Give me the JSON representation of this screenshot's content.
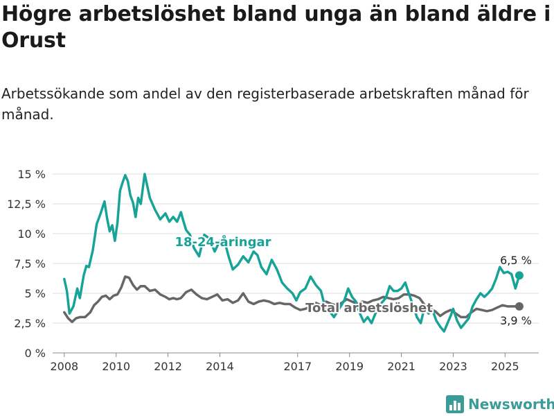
{
  "title": "Högre arbetslöshet bland unga än bland äldre i Orust",
  "subtitle": "Arbetssökande som andel av den registerbaserade arbetskraften månad för månad.",
  "brand": {
    "name": "Newsworthy",
    "icon": "bar-chart-icon",
    "color": "#3a9b97"
  },
  "chart_data": {
    "type": "line",
    "x_ticks": [
      "2008",
      "2010",
      "2012",
      "2014",
      "2017",
      "2019",
      "2021",
      "2023",
      "2025"
    ],
    "y_ticks": [
      "0 %",
      "2,5 %",
      "5 %",
      "7,5 %",
      "10 %",
      "12,5 %",
      "15 %"
    ],
    "ylim": [
      0,
      15
    ],
    "xlim": [
      2007.55,
      2026.3
    ],
    "grid": true,
    "series": [
      {
        "name": "18-24-åringar",
        "label": "18-24-åringar",
        "color": "#17a398",
        "end_label": "6,5 %",
        "x": [
          2008.0,
          2008.1,
          2008.2,
          2008.35,
          2008.5,
          2008.6,
          2008.75,
          2008.85,
          2008.95,
          2009.1,
          2009.25,
          2009.4,
          2009.55,
          2009.65,
          2009.75,
          2009.85,
          2009.95,
          2010.05,
          2010.15,
          2010.25,
          2010.35,
          2010.45,
          2010.55,
          2010.65,
          2010.75,
          2010.85,
          2010.95,
          2011.1,
          2011.3,
          2011.5,
          2011.7,
          2011.9,
          2012.05,
          2012.2,
          2012.35,
          2012.5,
          2012.6,
          2012.7,
          2012.85,
          2013.0,
          2013.2,
          2013.4,
          2013.6,
          2013.8,
          2014.0,
          2014.2,
          2014.35,
          2014.5,
          2014.7,
          2014.9,
          2015.1,
          2015.3,
          2015.45,
          2015.6,
          2015.8,
          2016.0,
          2016.2,
          2016.4,
          2016.6,
          2016.8,
          2016.95,
          2017.1,
          2017.3,
          2017.5,
          2017.7,
          2017.9,
          2018.05,
          2018.2,
          2018.4,
          2018.6,
          2018.8,
          2018.95,
          2019.1,
          2019.25,
          2019.4,
          2019.55,
          2019.7,
          2019.85,
          2020.0,
          2020.2,
          2020.4,
          2020.55,
          2020.7,
          2020.85,
          2021.0,
          2021.15,
          2021.3,
          2021.45,
          2021.6,
          2021.75,
          2021.9,
          2022.05,
          2022.2,
          2022.35,
          2022.5,
          2022.65,
          2022.8,
          2022.9,
          2023.0,
          2023.15,
          2023.3,
          2023.45,
          2023.6,
          2023.75,
          2023.9,
          2024.05,
          2024.2,
          2024.35,
          2024.5,
          2024.65,
          2024.8,
          2024.95,
          2025.1,
          2025.25,
          2025.4,
          2025.55
        ],
        "y": [
          6.2,
          5.2,
          3.3,
          3.9,
          5.4,
          4.6,
          6.5,
          7.3,
          7.2,
          8.6,
          10.8,
          11.7,
          12.7,
          11.3,
          10.2,
          10.7,
          9.4,
          10.9,
          13.6,
          14.3,
          14.9,
          14.4,
          13.2,
          12.6,
          11.4,
          13.0,
          12.5,
          15.0,
          13.0,
          12.0,
          11.2,
          11.7,
          11.0,
          11.4,
          11.0,
          11.8,
          11.0,
          10.3,
          9.9,
          8.8,
          8.1,
          9.9,
          9.6,
          8.5,
          9.4,
          9.2,
          8.0,
          7.0,
          7.4,
          8.1,
          7.6,
          8.5,
          8.2,
          7.2,
          6.6,
          7.8,
          7.0,
          5.9,
          5.4,
          5.0,
          4.4,
          5.1,
          5.4,
          6.4,
          5.7,
          5.2,
          3.9,
          3.6,
          3.0,
          3.7,
          4.4,
          5.4,
          4.7,
          4.3,
          3.3,
          2.6,
          3.0,
          2.5,
          3.3,
          4.1,
          4.6,
          5.6,
          5.2,
          5.2,
          5.4,
          5.9,
          4.9,
          4.0,
          3.0,
          2.5,
          3.9,
          3.3,
          3.6,
          2.7,
          2.2,
          1.8,
          2.6,
          3.1,
          3.7,
          2.7,
          2.1,
          2.5,
          2.9,
          3.9,
          4.5,
          5.0,
          4.7,
          5.0,
          5.4,
          6.2,
          7.2,
          6.7,
          6.8,
          6.6,
          5.4,
          6.5
        ]
      },
      {
        "name": "Total arbetslöshet",
        "label": "Total arbetslöshet",
        "color": "#666666",
        "end_label": "3,9 %",
        "x": [
          2008.0,
          2008.15,
          2008.3,
          2008.45,
          2008.6,
          2008.8,
          2009.0,
          2009.15,
          2009.3,
          2009.45,
          2009.6,
          2009.75,
          2009.9,
          2010.05,
          2010.2,
          2010.35,
          2010.5,
          2010.65,
          2010.8,
          2010.95,
          2011.1,
          2011.3,
          2011.5,
          2011.7,
          2011.9,
          2012.05,
          2012.2,
          2012.35,
          2012.5,
          2012.7,
          2012.9,
          2013.1,
          2013.3,
          2013.5,
          2013.7,
          2013.9,
          2014.1,
          2014.3,
          2014.5,
          2014.7,
          2014.9,
          2015.1,
          2015.3,
          2015.5,
          2015.7,
          2015.9,
          2016.1,
          2016.3,
          2016.5,
          2016.7,
          2016.9,
          2017.1,
          2017.3,
          2017.5,
          2017.7,
          2017.9,
          2018.1,
          2018.3,
          2018.5,
          2018.7,
          2018.9,
          2019.1,
          2019.3,
          2019.5,
          2019.7,
          2019.9,
          2020.1,
          2020.3,
          2020.5,
          2020.7,
          2020.9,
          2021.1,
          2021.3,
          2021.5,
          2021.7,
          2021.9,
          2022.1,
          2022.3,
          2022.5,
          2022.7,
          2022.9,
          2023.1,
          2023.3,
          2023.5,
          2023.7,
          2023.9,
          2024.1,
          2024.3,
          2024.5,
          2024.7,
          2024.9,
          2025.1,
          2025.3,
          2025.55
        ],
        "y": [
          3.4,
          2.9,
          2.6,
          2.9,
          3.0,
          3.0,
          3.4,
          4.0,
          4.3,
          4.7,
          4.8,
          4.5,
          4.8,
          4.9,
          5.5,
          6.4,
          6.3,
          5.7,
          5.3,
          5.6,
          5.6,
          5.2,
          5.3,
          4.9,
          4.7,
          4.5,
          4.6,
          4.5,
          4.6,
          5.1,
          5.3,
          4.9,
          4.6,
          4.5,
          4.7,
          4.9,
          4.4,
          4.5,
          4.2,
          4.4,
          5.0,
          4.3,
          4.1,
          4.3,
          4.4,
          4.3,
          4.1,
          4.2,
          4.1,
          4.1,
          3.8,
          3.6,
          3.7,
          3.9,
          4.2,
          4.0,
          4.3,
          4.1,
          4.0,
          4.2,
          4.5,
          4.3,
          4.1,
          4.3,
          4.2,
          4.4,
          4.5,
          4.7,
          4.6,
          4.5,
          4.6,
          4.9,
          4.9,
          4.8,
          4.6,
          4.0,
          3.7,
          3.5,
          3.1,
          3.4,
          3.6,
          3.3,
          3.0,
          3.0,
          3.4,
          3.7,
          3.6,
          3.5,
          3.6,
          3.8,
          4.0,
          3.9,
          3.9,
          3.9
        ]
      }
    ]
  }
}
